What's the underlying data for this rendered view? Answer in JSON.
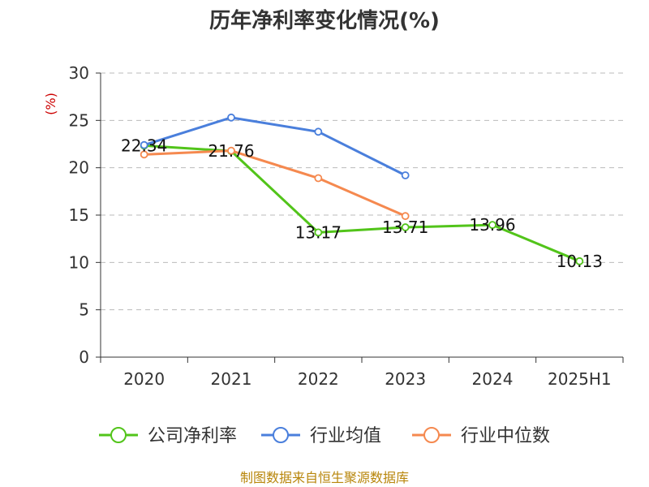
{
  "chart_data": {
    "type": "line",
    "title": "历年净利率变化情况(%)",
    "ylabel": "(%)",
    "categories": [
      "2020",
      "2021",
      "2022",
      "2023",
      "2024",
      "2025H1"
    ],
    "ylim": [
      0,
      30
    ],
    "yticks": [
      "0",
      "5",
      "10",
      "15",
      "20",
      "25",
      "30"
    ],
    "grid": true,
    "legend_position": "bottom",
    "series": [
      {
        "name": "公司净利率",
        "color": "#52c41a",
        "values": [
          22.34,
          21.76,
          13.17,
          13.71,
          13.96,
          10.13
        ],
        "labels": [
          "22.34",
          "21.76",
          "13.17",
          "13.71",
          "13.96",
          "10.13"
        ]
      },
      {
        "name": "行业均值",
        "color": "#4a7fdc",
        "values": [
          22.4,
          25.3,
          23.8,
          19.2,
          null,
          null
        ]
      },
      {
        "name": "行业中位数",
        "color": "#f5894f",
        "values": [
          21.4,
          21.8,
          18.9,
          14.9,
          null,
          null
        ]
      }
    ],
    "source": "制图数据来自恒生聚源数据库"
  }
}
